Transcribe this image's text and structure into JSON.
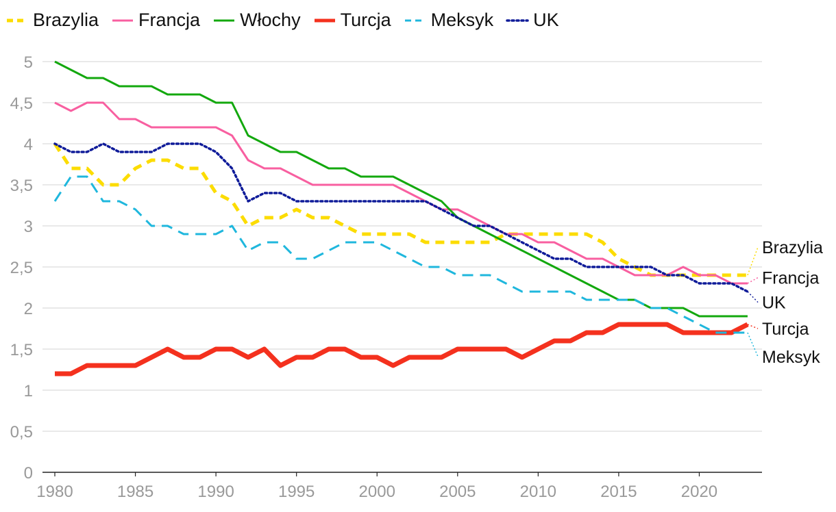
{
  "chart_data": {
    "type": "line",
    "title": "",
    "xlabel": "",
    "ylabel": "",
    "xlim": [
      1980,
      2023
    ],
    "ylim": [
      0,
      5
    ],
    "grid": true,
    "legend_position": "top",
    "x_ticks": [
      "1980",
      "1985",
      "1990",
      "1995",
      "2000",
      "2005",
      "2010",
      "2015",
      "2020"
    ],
    "y_ticks": [
      "0",
      "0,5",
      "1",
      "1,5",
      "2",
      "2,5",
      "3",
      "3,5",
      "4",
      "4,5",
      "5"
    ],
    "x": [
      1980,
      1981,
      1982,
      1983,
      1984,
      1985,
      1986,
      1987,
      1988,
      1989,
      1990,
      1991,
      1992,
      1993,
      1994,
      1995,
      1996,
      1997,
      1998,
      1999,
      2000,
      2001,
      2002,
      2003,
      2004,
      2005,
      2006,
      2007,
      2008,
      2009,
      2010,
      2011,
      2012,
      2013,
      2014,
      2015,
      2016,
      2017,
      2018,
      2019,
      2020,
      2021,
      2022,
      2023
    ],
    "series": [
      {
        "name": "Brazylia",
        "color": "#fcdc00",
        "style": "dashed",
        "width": 5,
        "values": [
          4.0,
          3.7,
          3.7,
          3.5,
          3.5,
          3.7,
          3.8,
          3.8,
          3.7,
          3.7,
          3.4,
          3.3,
          3.0,
          3.1,
          3.1,
          3.2,
          3.1,
          3.1,
          3.0,
          2.9,
          2.9,
          2.9,
          2.9,
          2.8,
          2.8,
          2.8,
          2.8,
          2.8,
          2.9,
          2.9,
          2.9,
          2.9,
          2.9,
          2.9,
          2.8,
          2.6,
          2.5,
          2.4,
          2.4,
          2.4,
          2.4,
          2.4,
          2.4,
          2.4
        ]
      },
      {
        "name": "Francja",
        "color": "#f85fa0",
        "style": "solid",
        "width": 3,
        "values": [
          4.5,
          4.4,
          4.5,
          4.5,
          4.3,
          4.3,
          4.2,
          4.2,
          4.2,
          4.2,
          4.2,
          4.1,
          3.8,
          3.7,
          3.7,
          3.6,
          3.5,
          3.5,
          3.5,
          3.5,
          3.5,
          3.5,
          3.4,
          3.3,
          3.2,
          3.2,
          3.1,
          3.0,
          2.9,
          2.9,
          2.8,
          2.8,
          2.7,
          2.6,
          2.6,
          2.5,
          2.4,
          2.4,
          2.4,
          2.5,
          2.4,
          2.4,
          2.3,
          2.3
        ]
      },
      {
        "name": "Włochy",
        "color": "#13a80e",
        "style": "solid",
        "width": 3,
        "values": [
          5.0,
          4.9,
          4.8,
          4.8,
          4.7,
          4.7,
          4.7,
          4.6,
          4.6,
          4.6,
          4.5,
          4.5,
          4.1,
          4.0,
          3.9,
          3.9,
          3.8,
          3.7,
          3.7,
          3.6,
          3.6,
          3.6,
          3.5,
          3.4,
          3.3,
          3.1,
          3.0,
          2.9,
          2.8,
          2.7,
          2.6,
          2.5,
          2.4,
          2.3,
          2.2,
          2.1,
          2.1,
          2.0,
          2.0,
          2.0,
          1.9,
          1.9,
          1.9,
          1.9
        ]
      },
      {
        "name": "Turcja",
        "color": "#f4311e",
        "style": "solid",
        "width": 7,
        "values": [
          1.2,
          1.2,
          1.3,
          1.3,
          1.3,
          1.3,
          1.4,
          1.5,
          1.4,
          1.4,
          1.5,
          1.5,
          1.4,
          1.5,
          1.3,
          1.4,
          1.4,
          1.5,
          1.5,
          1.4,
          1.4,
          1.3,
          1.4,
          1.4,
          1.4,
          1.5,
          1.5,
          1.5,
          1.5,
          1.4,
          1.5,
          1.6,
          1.6,
          1.7,
          1.7,
          1.8,
          1.8,
          1.8,
          1.8,
          1.7,
          1.7,
          1.7,
          1.7,
          1.8
        ]
      },
      {
        "name": "Meksyk",
        "color": "#1fb7dd",
        "style": "longdash",
        "width": 3,
        "values": [
          3.3,
          3.6,
          3.6,
          3.3,
          3.3,
          3.2,
          3.0,
          3.0,
          2.9,
          2.9,
          2.9,
          3.0,
          2.7,
          2.8,
          2.8,
          2.6,
          2.6,
          2.7,
          2.8,
          2.8,
          2.8,
          2.7,
          2.6,
          2.5,
          2.5,
          2.4,
          2.4,
          2.4,
          2.3,
          2.2,
          2.2,
          2.2,
          2.2,
          2.1,
          2.1,
          2.1,
          2.1,
          2.0,
          2.0,
          1.9,
          1.8,
          1.7,
          1.7,
          1.7
        ]
      },
      {
        "name": "UK",
        "color": "#0f1b99",
        "style": "dotted",
        "width": 3.5,
        "values": [
          4.0,
          3.9,
          3.9,
          4.0,
          3.9,
          3.9,
          3.9,
          4.0,
          4.0,
          4.0,
          3.9,
          3.7,
          3.3,
          3.4,
          3.4,
          3.3,
          3.3,
          3.3,
          3.3,
          3.3,
          3.3,
          3.3,
          3.3,
          3.3,
          3.2,
          3.1,
          3.0,
          3.0,
          2.9,
          2.8,
          2.7,
          2.6,
          2.6,
          2.5,
          2.5,
          2.5,
          2.5,
          2.5,
          2.4,
          2.4,
          2.3,
          2.3,
          2.3,
          2.2
        ]
      }
    ],
    "end_labels": [
      {
        "name": "Brazylia",
        "value": 2.4,
        "label_value": 2.74
      },
      {
        "name": "Francja",
        "value": 2.3,
        "label_value": 2.37
      },
      {
        "name": "UK",
        "value": 2.2,
        "label_value": 2.07
      },
      {
        "name": "Turcja",
        "value": 1.8,
        "label_value": 1.75
      },
      {
        "name": "Meksyk",
        "value": 1.7,
        "label_value": 1.41
      }
    ]
  }
}
